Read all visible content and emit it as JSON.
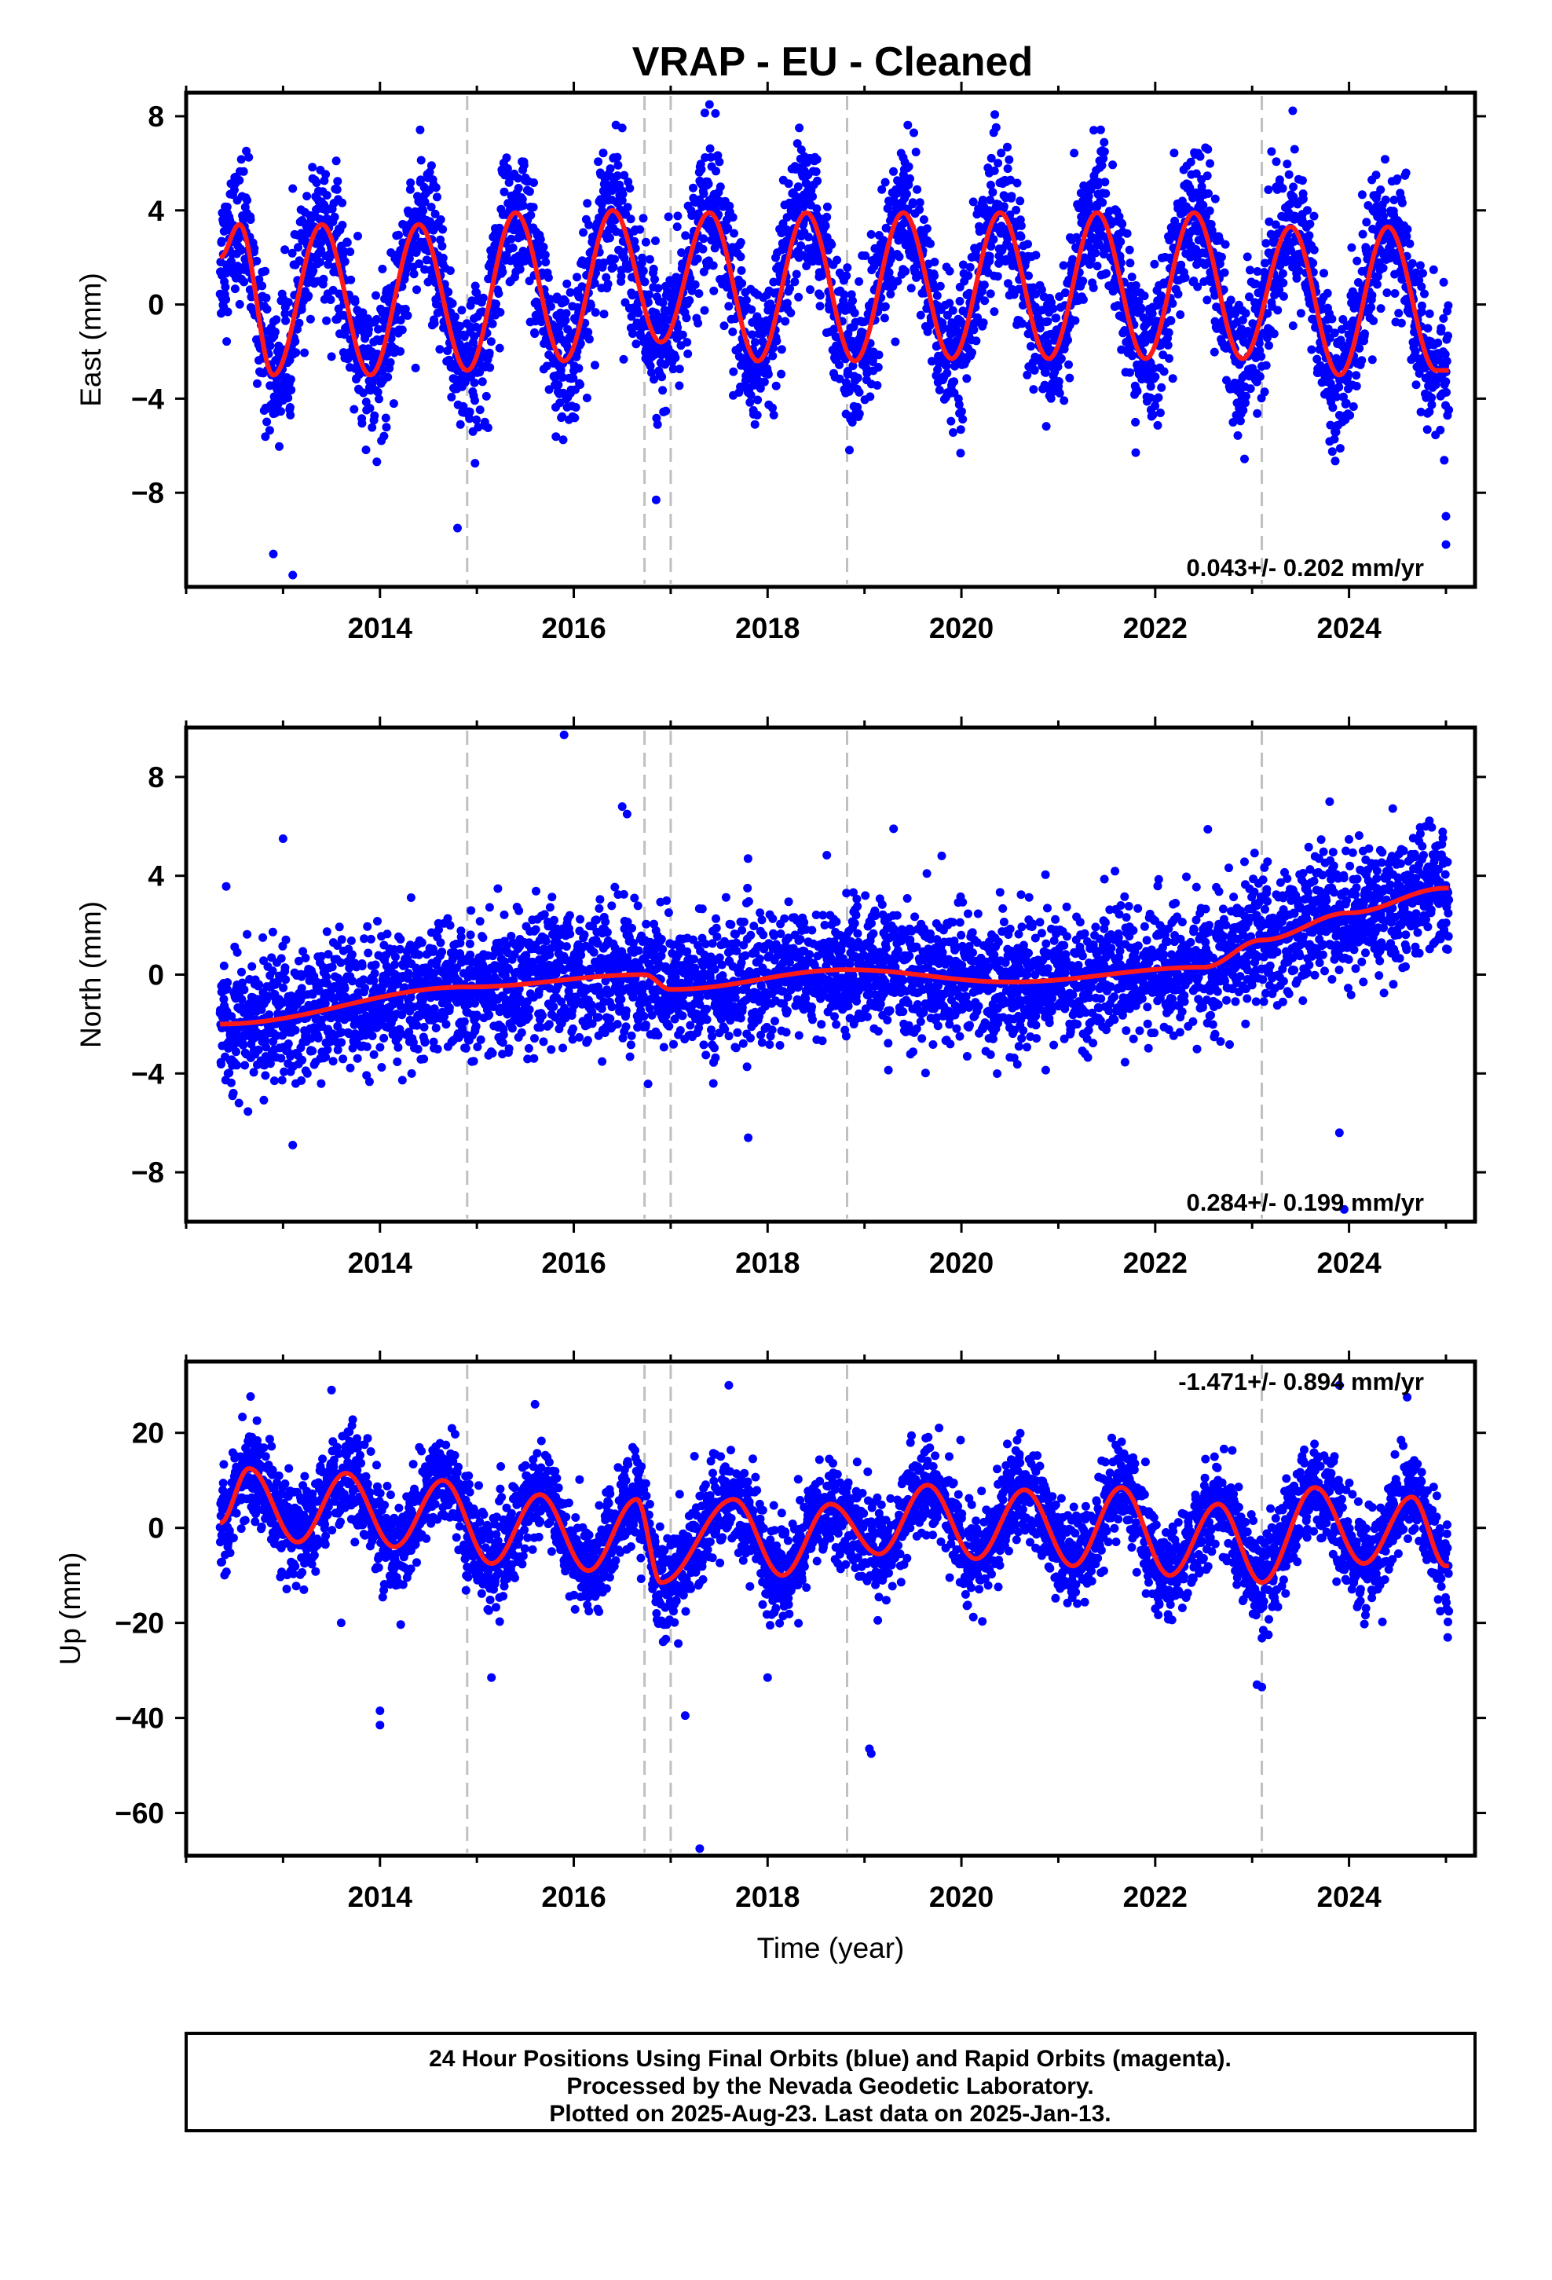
{
  "title": "VRAP  - EU - Cleaned",
  "colors": {
    "points": "#0000ff",
    "model": "#ff1a1a",
    "breaks": "#c0c0c0",
    "frame": "#000000"
  },
  "footer": {
    "line1": "24 Hour Positions Using Final Orbits (blue) and Rapid Orbits (magenta).",
    "line2": "Processed by the Nevada Geodetic Laboratory.",
    "line3": "Plotted on 2025-Aug-23. Last data on 2025-Jan-13."
  },
  "chart_data": [
    {
      "type": "scatter",
      "component": "east",
      "ylabel": "East (mm)",
      "xlim": [
        2012.0,
        2025.3
      ],
      "ylim": [
        -12,
        9
      ],
      "xticks": [
        2014,
        2016,
        2018,
        2020,
        2022,
        2024
      ],
      "xtick_labels": [
        "2014",
        "2016",
        "2018",
        "2020",
        "2022",
        "2024"
      ],
      "yticks": [
        -8,
        -4,
        0,
        4,
        8
      ],
      "ytick_labels": [
        "−8",
        "−4",
        "0",
        "4",
        "8"
      ],
      "xlabel": "",
      "rate": "0.043+/- 0.202 mm/yr",
      "rate_position": "bottom-right",
      "breaks": [
        2014.9,
        2016.73,
        2017.0,
        2018.82,
        2023.1
      ],
      "data_start": 2012.35,
      "data_end": 2025.03,
      "seasonal": {
        "offset": 0.3,
        "amplitude": 3.4,
        "peak_phase": 0.42,
        "semiannual": 0.25
      },
      "noise_sd": 1.5,
      "series": [
        {
          "name": "",
          "values_x": [
            2012.35,
            2012.55,
            2012.9,
            2013.4,
            2013.9,
            2014.4,
            2014.9,
            2015.4,
            2015.9,
            2016.4,
            2016.9,
            2017.4,
            2017.9,
            2018.4,
            2018.9,
            2019.4,
            2019.9,
            2020.4,
            2020.9,
            2021.4,
            2021.9,
            2022.4,
            2022.9,
            2023.4,
            2023.9,
            2024.4,
            2024.9
          ],
          "values_y": [
            2.0,
            3.4,
            -3.0,
            3.4,
            -3.0,
            3.4,
            -2.8,
            3.9,
            -2.4,
            4.0,
            -1.6,
            3.9,
            -2.4,
            3.9,
            -2.4,
            3.9,
            -2.3,
            3.9,
            -2.3,
            3.9,
            -2.3,
            3.9,
            -2.3,
            3.3,
            -3.0,
            3.3,
            -2.8
          ]
        }
      ],
      "outliers": [
        {
          "x": 2012.9,
          "y": -10.6
        },
        {
          "x": 2013.1,
          "y": -11.5
        },
        {
          "x": 2014.8,
          "y": -9.5
        },
        {
          "x": 2017.4,
          "y": 8.5
        },
        {
          "x": 2016.5,
          "y": 7.5
        },
        {
          "x": 2023.2,
          "y": 6.5
        },
        {
          "x": 2025.0,
          "y": -9.0
        },
        {
          "x": 2025.0,
          "y": -10.2
        },
        {
          "x": 2016.85,
          "y": -8.3
        }
      ]
    },
    {
      "type": "scatter",
      "component": "north",
      "ylabel": "North (mm)",
      "xlim": [
        2012.0,
        2025.3
      ],
      "ylim": [
        -10,
        10
      ],
      "xticks": [
        2014,
        2016,
        2018,
        2020,
        2022,
        2024
      ],
      "xtick_labels": [
        "2014",
        "2016",
        "2018",
        "2020",
        "2022",
        "2024"
      ],
      "yticks": [
        -8,
        -4,
        0,
        4,
        8
      ],
      "ytick_labels": [
        "−8",
        "−4",
        "0",
        "4",
        "8"
      ],
      "xlabel": "",
      "rate": "0.284+/- 0.199 mm/yr",
      "rate_position": "bottom-right",
      "breaks": [
        2014.9,
        2016.73,
        2017.0,
        2018.82,
        2023.1
      ],
      "data_start": 2012.35,
      "data_end": 2025.03,
      "seasonal": {
        "offset": -0.9,
        "amplitude": 0.8,
        "peak_phase": 0.3,
        "semiannual": 0.0
      },
      "noise_sd": 1.3,
      "series": [
        {
          "name": "",
          "values_x": [
            2012.35,
            2014.9,
            2016.73,
            2017.0,
            2018.82,
            2020.5,
            2022.5,
            2023.1,
            2024.0,
            2025.0
          ],
          "values_y": [
            -2.0,
            -0.5,
            0.0,
            -0.6,
            0.2,
            -0.3,
            0.3,
            1.4,
            2.5,
            3.5
          ]
        }
      ],
      "outliers": [
        {
          "x": 2013.0,
          "y": 5.5
        },
        {
          "x": 2015.9,
          "y": 9.7
        },
        {
          "x": 2016.5,
          "y": 6.8
        },
        {
          "x": 2016.55,
          "y": 6.5
        },
        {
          "x": 2019.3,
          "y": 5.9
        },
        {
          "x": 2013.1,
          "y": -6.9
        },
        {
          "x": 2017.8,
          "y": -6.6
        },
        {
          "x": 2023.9,
          "y": -6.4
        },
        {
          "x": 2023.95,
          "y": -9.5
        },
        {
          "x": 2023.8,
          "y": 7.0
        }
      ]
    },
    {
      "type": "scatter",
      "component": "up",
      "ylabel": "Up (mm)",
      "xlabel": "Time (year)",
      "xlim": [
        2012.0,
        2025.3
      ],
      "ylim": [
        -69,
        35
      ],
      "xticks": [
        2014,
        2016,
        2018,
        2020,
        2022,
        2024
      ],
      "xtick_labels": [
        "2014",
        "2016",
        "2018",
        "2020",
        "2022",
        "2024"
      ],
      "yticks": [
        -60,
        -40,
        -20,
        0,
        20
      ],
      "ytick_labels": [
        "−60",
        "−40",
        "−20",
        "0",
        "20"
      ],
      "rate": "-1.471+/- 0.894 mm/yr",
      "rate_position": "top-right",
      "breaks": [
        2014.9,
        2016.73,
        2017.0,
        2018.82,
        2023.1
      ],
      "data_start": 2012.35,
      "data_end": 2025.03,
      "seasonal": {
        "offset": 1.0,
        "amplitude": 8.5,
        "peak_phase": 0.62,
        "semiannual": 0.0
      },
      "noise_sd": 5.0,
      "series": [
        {
          "name": "",
          "values_x": [
            2012.35,
            2012.65,
            2013.15,
            2013.65,
            2014.15,
            2014.65,
            2015.15,
            2015.65,
            2016.15,
            2016.65,
            2016.9,
            2017.65,
            2018.15,
            2018.65,
            2019.15,
            2019.65,
            2020.15,
            2020.65,
            2021.15,
            2021.65,
            2022.15,
            2022.65,
            2023.1,
            2023.65,
            2024.15,
            2024.65,
            2025.0
          ],
          "values_y": [
            1.0,
            12.5,
            -3.0,
            11.5,
            -4.0,
            10.0,
            -7.5,
            7.0,
            -9.0,
            6.0,
            -11.5,
            6.0,
            -10.0,
            5.0,
            -5.5,
            9.0,
            -6.5,
            8.0,
            -8.0,
            8.5,
            -10.0,
            5.0,
            -11.5,
            8.5,
            -7.5,
            6.5,
            -8.0
          ]
        }
      ],
      "outliers": [
        {
          "x": 2013.5,
          "y": 29.0
        },
        {
          "x": 2015.6,
          "y": 26.0
        },
        {
          "x": 2017.6,
          "y": 30.0
        },
        {
          "x": 2014.0,
          "y": -38.5
        },
        {
          "x": 2014.0,
          "y": -41.5
        },
        {
          "x": 2013.6,
          "y": -20.0
        },
        {
          "x": 2015.15,
          "y": -31.5
        },
        {
          "x": 2017.15,
          "y": -39.5
        },
        {
          "x": 2017.3,
          "y": -67.5
        },
        {
          "x": 2018.0,
          "y": -31.5
        },
        {
          "x": 2019.05,
          "y": -46.5
        },
        {
          "x": 2019.07,
          "y": -47.5
        },
        {
          "x": 2023.05,
          "y": -33.0
        },
        {
          "x": 2023.1,
          "y": -33.5
        },
        {
          "x": 2023.9,
          "y": 30.0
        },
        {
          "x": 2024.6,
          "y": 27.5
        }
      ]
    }
  ]
}
